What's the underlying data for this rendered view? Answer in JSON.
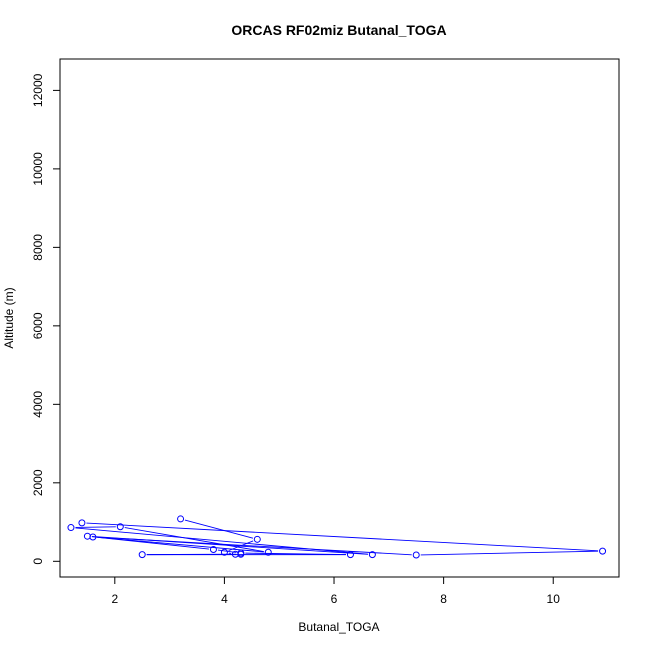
{
  "chart_data": {
    "type": "line",
    "title": "ORCAS RF02miz Butanal_TOGA",
    "xlabel": "Butanal_TOGA",
    "ylabel": "Altitude (m)",
    "xlim": [
      1.0,
      11.2
    ],
    "ylim": [
      -400,
      12800
    ],
    "x_ticks": [
      2,
      4,
      6,
      8,
      10
    ],
    "y_ticks": [
      0,
      2000,
      4000,
      6000,
      8000,
      10000,
      12000
    ],
    "x_tick_labels": [
      "2",
      "4",
      "6",
      "8",
      "10"
    ],
    "y_tick_labels": [
      "0",
      "2000",
      "4000",
      "6000",
      "8000",
      "10000",
      "12000"
    ],
    "series": [
      {
        "color": "#0000ff",
        "marker": "open-circle",
        "x": [
          3.2,
          4.6,
          4.0,
          4.2,
          4.3,
          2.5,
          6.3,
          4.3,
          3.8,
          1.5,
          6.7,
          1.2,
          2.1,
          4.8,
          1.6,
          7.5,
          10.9,
          1.4
        ],
        "y": [
          1080,
          560,
          230,
          180,
          180,
          170,
          170,
          210,
          300,
          640,
          170,
          860,
          880,
          230,
          620,
          160,
          260,
          980
        ]
      }
    ]
  }
}
